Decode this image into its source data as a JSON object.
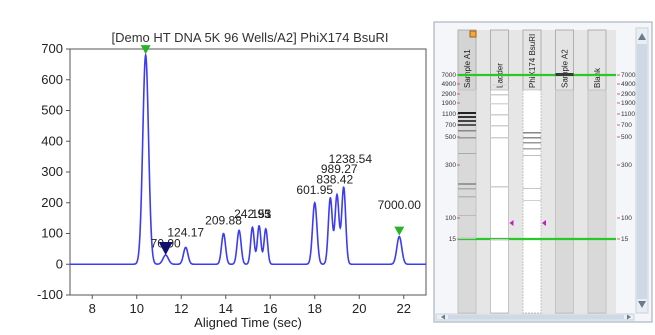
{
  "chart_data": {
    "type": "line",
    "title": "[Demo HT DNA 5K 96 Wells/A2] PhiX174 BsuRI",
    "xlabel": "Aligned Time (sec)",
    "ylabel": "",
    "xlim": [
      7,
      23
    ],
    "ylim": [
      -100,
      700
    ],
    "x_ticks": [
      8,
      10,
      12,
      14,
      16,
      18,
      20,
      22
    ],
    "y_ticks": [
      -100,
      0,
      100,
      200,
      300,
      400,
      500,
      600,
      700
    ],
    "grid": false,
    "series": [
      {
        "name": "",
        "color": "#3c3cf0",
        "peaks": [
          {
            "x": 10.4,
            "y": 680,
            "w": 0.13
          },
          {
            "x": 11.3,
            "y": 30,
            "w": 0.12
          },
          {
            "x": 12.2,
            "y": 55,
            "w": 0.1
          },
          {
            "x": 13.9,
            "y": 100,
            "w": 0.09
          },
          {
            "x": 14.6,
            "y": 110,
            "w": 0.09
          },
          {
            "x": 15.2,
            "y": 120,
            "w": 0.08
          },
          {
            "x": 15.5,
            "y": 125,
            "w": 0.08
          },
          {
            "x": 15.8,
            "y": 115,
            "w": 0.08
          },
          {
            "x": 18.0,
            "y": 200,
            "w": 0.1
          },
          {
            "x": 18.7,
            "y": 215,
            "w": 0.09
          },
          {
            "x": 19.0,
            "y": 225,
            "w": 0.09
          },
          {
            "x": 19.3,
            "y": 250,
            "w": 0.09
          },
          {
            "x": 21.8,
            "y": 90,
            "w": 0.11
          }
        ]
      }
    ],
    "annotations": [
      {
        "text": "70.90",
        "x": 11.3,
        "y": 55
      },
      {
        "text": "124.17",
        "x": 12.2,
        "y": 90
      },
      {
        "text": "209.88",
        "x": 13.9,
        "y": 130
      },
      {
        "text": "242.95",
        "x": 15.2,
        "y": 150
      },
      {
        "text": "151",
        "x": 15.6,
        "y": 150
      },
      {
        "text": "3",
        "x": 15.9,
        "y": 150
      },
      {
        "text": "601.95",
        "x": 18.0,
        "y": 228
      },
      {
        "text": "838.42",
        "x": 18.9,
        "y": 262
      },
      {
        "text": "989.27",
        "x": 19.1,
        "y": 296
      },
      {
        "text": "1238.54",
        "x": 19.6,
        "y": 330
      },
      {
        "text": "7000.00",
        "x": 21.8,
        "y": 180
      }
    ],
    "markers": [
      {
        "type": "green-down",
        "x": 10.4,
        "y": 680
      },
      {
        "type": "blue-down",
        "x": 11.3,
        "y": 30
      },
      {
        "type": "green-down",
        "x": 21.8,
        "y": 90
      }
    ]
  },
  "gel": {
    "lanes": [
      "Sample A1",
      "Ladder",
      "PhiX174 BsuRI",
      "Sample A2",
      "Blank"
    ],
    "ladder_sizes": [
      "7000",
      "4900",
      "2900",
      "1900",
      "1100",
      "700",
      "500",
      "300",
      "100",
      "15"
    ],
    "ladder_y": [
      75,
      84,
      94,
      103,
      114,
      125,
      137,
      165,
      218,
      239
    ],
    "upper_marker": 7000,
    "lower_marker": 15,
    "colors": {
      "marker_line": "#28c828",
      "band": "#222222",
      "selection_badge": "#f3a83b",
      "arrow": "#c020c0"
    }
  }
}
